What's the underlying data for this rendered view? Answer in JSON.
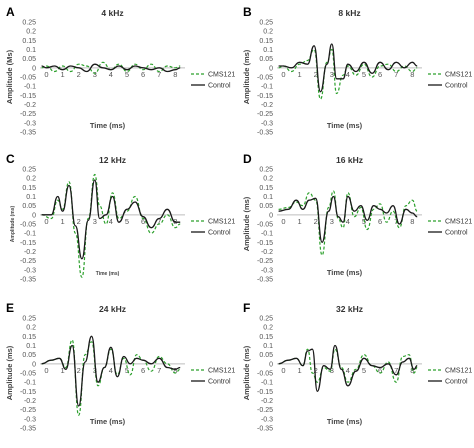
{
  "figure": {
    "legend": [
      "CMS121",
      "Control"
    ],
    "colors": {
      "cms121": "#2ca02c",
      "control": "#1a1a1a",
      "axis": "#bdbdbd"
    }
  },
  "chart_data": [
    {
      "panel": "A",
      "title": "4 kHz",
      "type": "line",
      "ylabel": "Amplitude (Ms)",
      "xlabel": "Time (ms)",
      "ylim": [
        -0.35,
        0.25
      ],
      "xlim": [
        -0.4,
        8.6
      ],
      "yticks": [
        "0.25",
        "0.2",
        "0.15",
        "0.1",
        "0.05",
        "0",
        "-0.05",
        "-0.1",
        "-0.15",
        "-0.2",
        "-0.25",
        "-0.3",
        "-0.35"
      ],
      "xticks": [
        "0",
        "1",
        "2",
        "3",
        "4",
        "5",
        "6",
        "7",
        "8"
      ],
      "legend_position": "right",
      "series": [
        {
          "name": "CMS121",
          "x": [
            -0.3,
            0,
            0.5,
            1,
            1.5,
            2,
            2.5,
            3,
            3.5,
            4,
            4.5,
            5,
            5.5,
            6,
            6.5,
            7,
            7.5,
            8,
            8.3
          ],
          "y": [
            0,
            0.01,
            -0.02,
            0.01,
            -0.02,
            0.02,
            0.01,
            -0.03,
            0.03,
            -0.01,
            0.02,
            -0.02,
            0.02,
            -0.01,
            0.02,
            -0.02,
            0.01,
            0,
            0.01
          ]
        },
        {
          "name": "Control",
          "x": [
            -0.3,
            0,
            0.5,
            1,
            1.5,
            2,
            2.5,
            3,
            3.5,
            4,
            4.5,
            5,
            5.5,
            6,
            6.5,
            7,
            7.5,
            8,
            8.3
          ],
          "y": [
            0.01,
            0,
            0.01,
            -0.01,
            0.01,
            0,
            -0.02,
            0.02,
            0,
            -0.01,
            0.01,
            -0.01,
            0.01,
            0,
            -0.01,
            0,
            -0.02,
            -0.01,
            0
          ]
        }
      ]
    },
    {
      "panel": "B",
      "title": "8 kHz",
      "type": "line",
      "ylabel": "Amplitude (ms)",
      "xlabel": "Time (ms)",
      "ylim": [
        -0.35,
        0.25
      ],
      "xlim": [
        -0.4,
        8.6
      ],
      "yticks": [
        "0.25",
        "0.2",
        "0.15",
        "0.1",
        "0.05",
        "0",
        "-0.05",
        "-0.1",
        "-0.15",
        "-0.2",
        "-0.25",
        "-0.3",
        "-0.35"
      ],
      "xticks": [
        "0",
        "1",
        "2",
        "3",
        "4",
        "5",
        "6",
        "7",
        "8"
      ],
      "legend_position": "right",
      "series": [
        {
          "name": "CMS121",
          "x": [
            -0.3,
            0,
            0.5,
            1,
            1.5,
            1.9,
            2.3,
            2.7,
            3,
            3.3,
            3.7,
            4,
            4.5,
            5,
            5.5,
            6,
            6.5,
            7,
            7.5,
            8,
            8.3
          ],
          "y": [
            0,
            0.01,
            -0.02,
            0.02,
            0.04,
            0.1,
            -0.17,
            0.03,
            0.1,
            -0.14,
            -0.04,
            0.01,
            -0.04,
            0.02,
            -0.05,
            0.01,
            0.02,
            -0.02,
            0.01,
            -0.02,
            0
          ]
        },
        {
          "name": "Control",
          "x": [
            -0.3,
            0,
            0.5,
            1,
            1.5,
            1.9,
            2.3,
            2.7,
            3,
            3.3,
            3.7,
            4,
            4.5,
            5,
            5.5,
            6,
            6.5,
            7,
            7.5,
            8,
            8.3
          ],
          "y": [
            0.01,
            0.01,
            0,
            0.03,
            0.02,
            0.12,
            -0.13,
            0.02,
            0.13,
            -0.06,
            -0.06,
            0.02,
            -0.02,
            0.03,
            -0.03,
            0.03,
            -0.01,
            0.03,
            0,
            0.03,
            0.01
          ]
        }
      ]
    },
    {
      "panel": "C",
      "title": "12 kHz",
      "type": "line",
      "ylabel": "Amplitude (ms)",
      "xlabel": "Time (ms)",
      "ylim": [
        -0.35,
        0.25
      ],
      "xlim": [
        -0.4,
        8.6
      ],
      "yticks": [
        "0.25",
        "0.2",
        "0.15",
        "0.1",
        "0.05",
        "0",
        "-0.05",
        "-0.1",
        "-0.15",
        "-0.2",
        "-0.25",
        "-0.3",
        "-0.35"
      ],
      "xticks": [
        "0",
        "1",
        "2",
        "3",
        "4",
        "5",
        "6",
        "7",
        "8"
      ],
      "legend_position": "right",
      "series": [
        {
          "name": "CMS121",
          "x": [
            -0.3,
            0.3,
            0.7,
            1,
            1.4,
            1.8,
            2.2,
            2.6,
            3,
            3.3,
            3.7,
            4.1,
            4.5,
            5,
            5.5,
            6,
            6.5,
            7,
            7.5,
            8,
            8.3
          ],
          "y": [
            0,
            -0.02,
            0.08,
            0.03,
            0.18,
            -0.1,
            -0.34,
            -0.02,
            0.22,
            0.05,
            -0.05,
            0.12,
            -0.02,
            0.02,
            0.1,
            -0.02,
            -0.1,
            -0.05,
            0,
            -0.07,
            -0.05
          ]
        },
        {
          "name": "Control",
          "x": [
            -0.3,
            0.3,
            0.7,
            1,
            1.4,
            1.8,
            2.2,
            2.6,
            3,
            3.3,
            3.7,
            4.1,
            4.5,
            5,
            5.5,
            6,
            6.5,
            7,
            7.5,
            8,
            8.3
          ],
          "y": [
            0,
            0,
            0.1,
            0.02,
            0.16,
            -0.06,
            -0.24,
            -0.03,
            0.19,
            -0.02,
            0,
            0.1,
            -0.04,
            0.03,
            0.07,
            -0.01,
            -0.07,
            -0.02,
            0.03,
            -0.04,
            -0.04
          ]
        }
      ]
    },
    {
      "panel": "D",
      "title": "16 kHz",
      "type": "line",
      "ylabel": "Amplitude (ms)",
      "xlabel": "Time (ms)",
      "ylim": [
        -0.35,
        0.25
      ],
      "xlim": [
        -0.4,
        8.6
      ],
      "yticks": [
        "0.25",
        "0.2",
        "0.15",
        "0.1",
        "0.05",
        "0",
        "-0.05",
        "-0.1",
        "-0.15",
        "-0.2",
        "-0.25",
        "-0.3",
        "-0.35"
      ],
      "xticks": [
        "0",
        "1",
        "2",
        "3",
        "4",
        "5",
        "6",
        "7",
        "8"
      ],
      "legend_position": "right",
      "series": [
        {
          "name": "CMS121",
          "x": [
            -0.3,
            0.3,
            0.8,
            1.2,
            1.6,
            2,
            2.4,
            2.8,
            3.1,
            3.4,
            3.7,
            4,
            4.4,
            4.8,
            5.2,
            5.6,
            6,
            6.4,
            6.8,
            7.2,
            7.6,
            8,
            8.3
          ],
          "y": [
            0.03,
            0.04,
            0.07,
            0.05,
            0.12,
            0.08,
            -0.22,
            0.04,
            0.13,
            -0.02,
            -0.07,
            0.12,
            -0.01,
            0.04,
            -0.08,
            0.03,
            0.06,
            -0.04,
            0.02,
            -0.07,
            0.05,
            0.08,
            0.02
          ]
        },
        {
          "name": "Control",
          "x": [
            -0.3,
            0.3,
            0.8,
            1.2,
            1.6,
            2,
            2.4,
            2.8,
            3.1,
            3.4,
            3.7,
            4,
            4.4,
            4.8,
            5.2,
            5.6,
            6,
            6.4,
            6.8,
            7.2,
            7.6,
            8,
            8.3
          ],
          "y": [
            0.02,
            0.03,
            0.08,
            0.03,
            0.08,
            0.09,
            -0.15,
            0.02,
            0.1,
            -0.01,
            -0.04,
            0.1,
            0.02,
            0.05,
            -0.03,
            0.05,
            0.03,
            0.01,
            0.05,
            -0.05,
            0.03,
            0.01,
            -0.01
          ]
        }
      ]
    },
    {
      "panel": "E",
      "title": "24 kHz",
      "type": "line",
      "ylabel": "Amplitude (ms)",
      "xlabel": "Time (ms)",
      "ylim": [
        -0.35,
        0.25
      ],
      "xlim": [
        -0.4,
        8.6
      ],
      "yticks": [
        "0.25",
        "0.2",
        "0.15",
        "0.1",
        "0.05",
        "0",
        "-0.05",
        "-0.1",
        "-0.15",
        "-0.2",
        "-0.25",
        "-0.3",
        "-0.35"
      ],
      "xticks": [
        "0",
        "1",
        "2",
        "3",
        "4",
        "5",
        "6",
        "7",
        "8"
      ],
      "legend_position": "right",
      "series": [
        {
          "name": "CMS121",
          "x": [
            -0.3,
            0.3,
            0.8,
            1.2,
            1.6,
            2,
            2.4,
            2.8,
            3.2,
            3.6,
            4,
            4.4,
            4.8,
            5.2,
            5.6,
            6,
            6.5,
            7,
            7.5,
            8,
            8.3
          ],
          "y": [
            0,
            0.02,
            0.03,
            -0.02,
            0.13,
            -0.28,
            0.05,
            0.12,
            -0.12,
            -0.02,
            0.08,
            -0.06,
            0.03,
            -0.06,
            0.05,
            0.02,
            -0.04,
            0.04,
            0,
            -0.05,
            -0.03
          ]
        },
        {
          "name": "Control",
          "x": [
            -0.3,
            0.3,
            0.8,
            1.2,
            1.6,
            2,
            2.4,
            2.8,
            3.2,
            3.6,
            4,
            4.4,
            4.8,
            5.2,
            5.6,
            6,
            6.5,
            7,
            7.5,
            8,
            8.3
          ],
          "y": [
            0,
            0.02,
            0.03,
            -0.03,
            0.1,
            -0.23,
            0.01,
            0.15,
            -0.1,
            -0.02,
            0.09,
            -0.07,
            0.04,
            0,
            0.03,
            0.02,
            0,
            0.03,
            -0.02,
            -0.03,
            -0.02
          ]
        }
      ]
    },
    {
      "panel": "F",
      "title": "32 kHz",
      "type": "line",
      "ylabel": "Amplitude (ms)",
      "xlabel": "Time (ms)",
      "ylim": [
        -0.35,
        0.25
      ],
      "xlim": [
        -0.4,
        8.6
      ],
      "yticks": [
        "0.25",
        "0.2",
        "0.15",
        "0.1",
        "0.05",
        "0",
        "-0.05",
        "-0.1",
        "-0.15",
        "-0.2",
        "-0.25",
        "-0.3",
        "-0.35"
      ],
      "xticks": [
        "0",
        "1",
        "2",
        "3",
        "4",
        "5",
        "6",
        "7",
        "8"
      ],
      "legend_position": "right",
      "series": [
        {
          "name": "CMS121",
          "x": [
            -0.3,
            0.3,
            0.8,
            1.2,
            1.5,
            1.8,
            2.1,
            2.5,
            2.9,
            3.2,
            3.6,
            4,
            4.5,
            5,
            5.5,
            6,
            6.5,
            7,
            7.4,
            7.8,
            8.1,
            8.3
          ],
          "y": [
            0,
            0.02,
            0.03,
            -0.01,
            0.08,
            -0.05,
            -0.1,
            -0.02,
            -0.04,
            0.08,
            -0.02,
            -0.1,
            -0.03,
            0.05,
            -0.01,
            -0.05,
            0.01,
            -0.1,
            0.04,
            0.05,
            -0.05,
            -0.02
          ]
        },
        {
          "name": "Control",
          "x": [
            -0.3,
            0.3,
            0.8,
            1.2,
            1.5,
            1.8,
            2.1,
            2.5,
            2.9,
            3.2,
            3.6,
            4,
            4.5,
            5,
            5.5,
            6,
            6.5,
            7,
            7.4,
            7.8,
            8.1,
            8.3
          ],
          "y": [
            0,
            0.02,
            0.03,
            -0.01,
            0.07,
            0.08,
            -0.15,
            -0.01,
            -0.03,
            0.1,
            -0.03,
            -0.12,
            -0.04,
            0.03,
            -0.01,
            -0.02,
            0,
            -0.06,
            0.01,
            0.03,
            -0.03,
            -0.01
          ]
        }
      ]
    }
  ]
}
